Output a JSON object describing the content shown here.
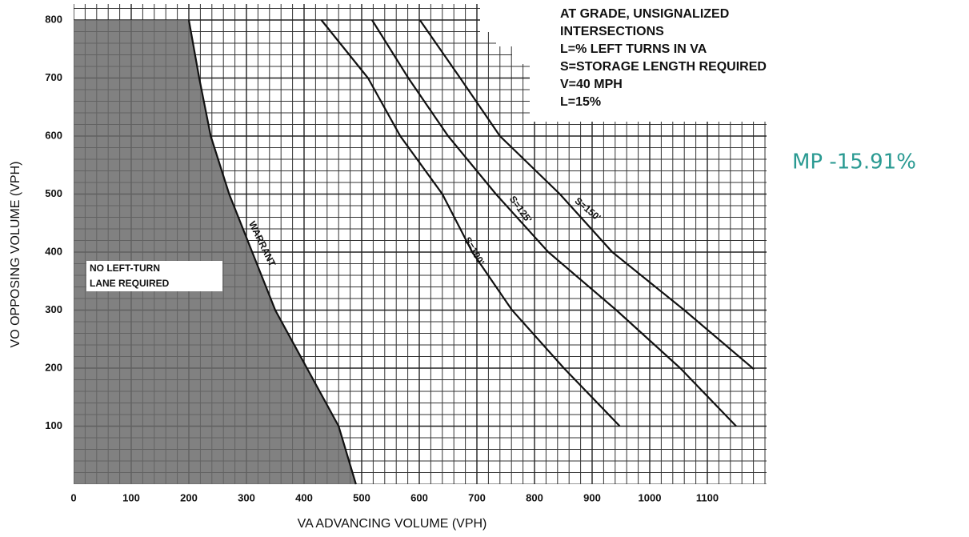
{
  "chart_data": {
    "type": "line",
    "title_lines": [
      "AT GRADE, UNSIGNALIZED",
      "INTERSECTIONS",
      "L=% LEFT TURNS IN VA",
      "S=STORAGE LENGTH REQUIRED",
      "V=40 MPH",
      "L=15%"
    ],
    "x_label": "VA ADVANCING VOLUME (VPH)",
    "y_label": "VO OPPOSING VOLUME (VPH)",
    "region_label_lines": [
      "NO LEFT-TURN",
      "LANE REQUIRED"
    ],
    "handwritten_note": "MP -15.91%",
    "xlim": [
      0,
      1200
    ],
    "ylim": [
      0,
      800
    ],
    "xticks": [
      0,
      100,
      200,
      300,
      400,
      500,
      600,
      700,
      800,
      900,
      1000,
      1100
    ],
    "yticks": [
      100,
      200,
      300,
      400,
      500,
      600,
      700,
      800
    ],
    "grid": true,
    "grid_step": 20,
    "series": [
      {
        "name": "WARRANT",
        "color": "#111111",
        "area_color": "#6b6b6b",
        "x": [
          200,
          218,
          238,
          270,
          310,
          350,
          405,
          460,
          490
        ],
        "values": [
          800,
          700,
          600,
          500,
          400,
          300,
          200,
          100,
          0
        ]
      },
      {
        "name": "S=100'",
        "color": "#111111",
        "x": [
          430,
          511,
          567,
          640,
          692,
          761,
          851,
          948
        ],
        "values": [
          800,
          700,
          600,
          500,
          400,
          300,
          200,
          100
        ]
      },
      {
        "name": "S=125'",
        "color": "#111111",
        "x": [
          518,
          581,
          650,
          733,
          824,
          942,
          1053,
          1150
        ],
        "values": [
          800,
          700,
          600,
          500,
          400,
          300,
          200,
          100
        ]
      },
      {
        "name": "S=150'",
        "color": "#111111",
        "x": [
          601,
          671,
          740,
          844,
          935,
          1060,
          1181
        ],
        "values": [
          800,
          700,
          600,
          500,
          400,
          300,
          198
        ]
      }
    ]
  }
}
